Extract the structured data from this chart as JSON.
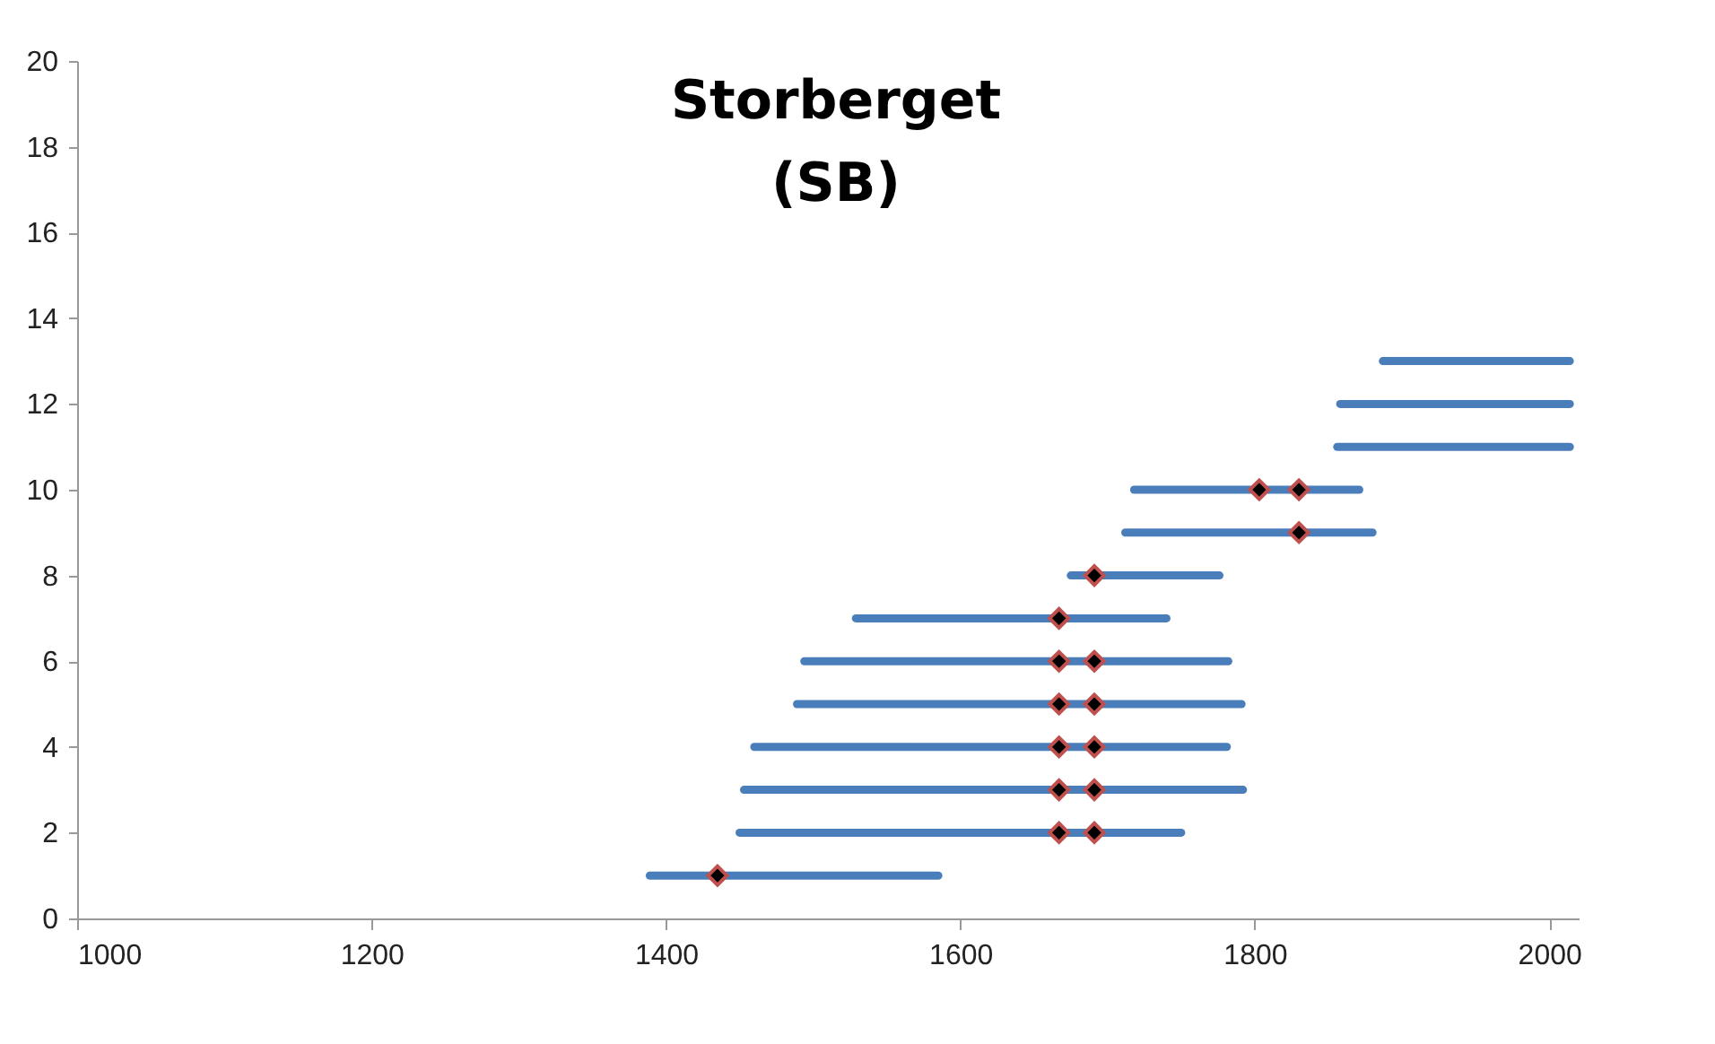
{
  "chart_data": {
    "type": "line",
    "title": "Storberget\n(SB)",
    "xlim": [
      1000,
      2020
    ],
    "xticks": [
      1000,
      1200,
      1400,
      1600,
      1800,
      2000
    ],
    "ylim": [
      0,
      20
    ],
    "yticks": [
      0,
      2,
      4,
      6,
      8,
      10,
      12,
      14,
      16,
      18,
      20
    ],
    "grid": false,
    "marker": "none",
    "series": [
      {
        "color": "#4a7ebb",
        "x": [
          1389,
          1585
        ],
        "values": [
          1,
          1
        ]
      },
      {
        "color": "#4a7ebb",
        "x": [
          1450,
          1750
        ],
        "values": [
          2,
          2
        ]
      },
      {
        "color": "#4a7ebb",
        "x": [
          1453,
          1792
        ],
        "values": [
          3,
          3
        ]
      },
      {
        "color": "#4a7ebb",
        "x": [
          1460,
          1781
        ],
        "values": [
          4,
          4
        ]
      },
      {
        "color": "#4a7ebb",
        "x": [
          1489,
          1791
        ],
        "values": [
          5,
          5
        ]
      },
      {
        "color": "#4a7ebb",
        "x": [
          1494,
          1782
        ],
        "values": [
          6,
          6
        ]
      },
      {
        "color": "#4a7ebb",
        "x": [
          1529,
          1740
        ],
        "values": [
          7,
          7
        ]
      },
      {
        "color": "#4a7ebb",
        "x": [
          1675,
          1776
        ],
        "values": [
          8,
          8
        ]
      },
      {
        "color": "#4a7ebb",
        "x": [
          1712,
          1880
        ],
        "values": [
          9,
          9
        ]
      },
      {
        "color": "#4a7ebb",
        "x": [
          1718,
          1871
        ],
        "values": [
          10,
          10
        ]
      },
      {
        "color": "#4a7ebb",
        "x": [
          1856,
          2014
        ],
        "values": [
          11,
          11
        ]
      },
      {
        "color": "#4a7ebb",
        "x": [
          1858,
          2014
        ],
        "values": [
          12,
          12
        ]
      },
      {
        "color": "#4a7ebb",
        "x": [
          1887,
          2014
        ],
        "values": [
          13,
          13
        ]
      },
      {
        "type": "scatter",
        "marker": "diamond",
        "color": "#000000",
        "x": [
          1435,
          1667,
          1691,
          1667,
          1691,
          1667,
          1691,
          1667,
          1691,
          1667,
          1691,
          1667,
          1691,
          1830,
          1803,
          1830
        ],
        "values": [
          1,
          2,
          2,
          3,
          3,
          4,
          4,
          5,
          5,
          6,
          6,
          7,
          8,
          9,
          10,
          10
        ]
      }
    ]
  }
}
